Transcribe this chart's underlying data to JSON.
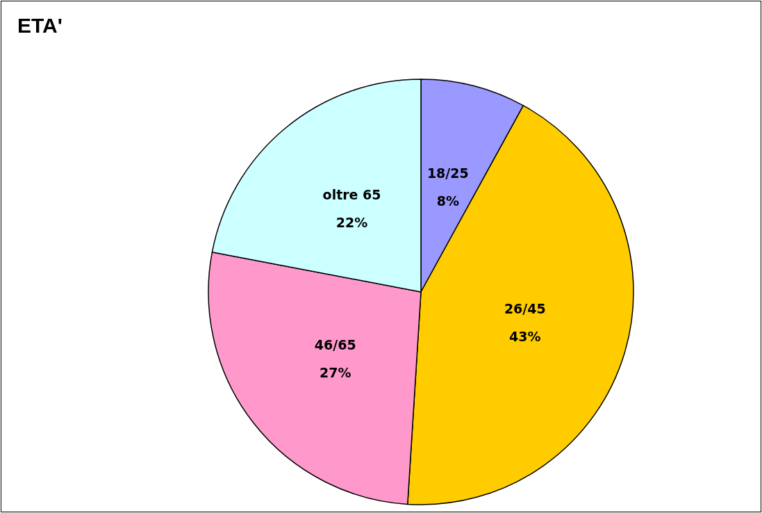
{
  "chart_data": {
    "type": "pie",
    "title": "ETA'",
    "categories": [
      "18/25",
      "26/45",
      "46/65",
      "oltre 65"
    ],
    "values": [
      8,
      43,
      27,
      22
    ],
    "value_labels": [
      "8%",
      "43%",
      "27%",
      "22%"
    ],
    "colors": [
      "#9999ff",
      "#ffcc00",
      "#ff99cc",
      "#ccffff"
    ]
  }
}
